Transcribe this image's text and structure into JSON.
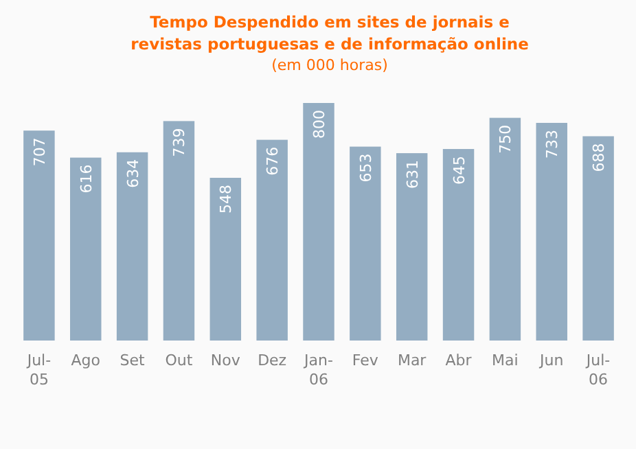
{
  "chart_data": {
    "type": "bar",
    "title": "Tempo Despendido em sites de jornais e\nrevistas portuguesas e de informação online",
    "subtitle": "(em 000 horas)",
    "categories": [
      "Jul-05",
      "Ago",
      "Set",
      "Out",
      "Nov",
      "Dez",
      "Jan-06",
      "Fev",
      "Mar",
      "Abr",
      "Mai",
      "Jun",
      "Jul-06"
    ],
    "values": [
      707,
      616,
      634,
      739,
      548,
      676,
      800,
      653,
      631,
      645,
      750,
      733,
      688
    ],
    "color": "#94adc2",
    "data_labels": true
  }
}
